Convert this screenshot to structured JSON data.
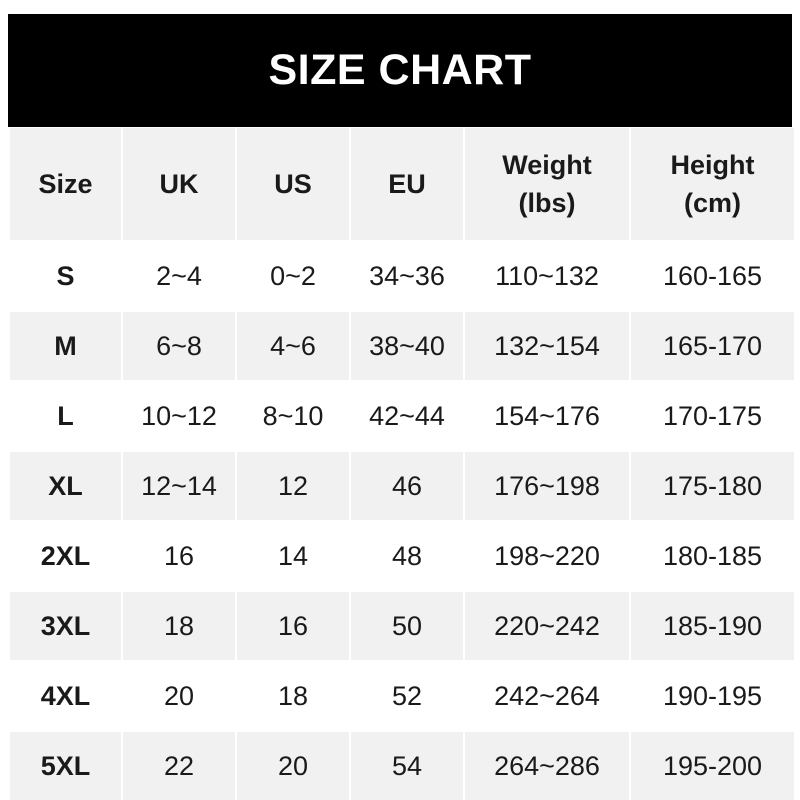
{
  "chart_data": {
    "type": "table",
    "title": "SIZE CHART",
    "columns": [
      "Size",
      "UK",
      "US",
      "EU",
      "Weight\n(lbs)",
      "Height\n(cm)"
    ],
    "rows": [
      [
        "S",
        "2~4",
        "0~2",
        "34~36",
        "110~132",
        "160-165"
      ],
      [
        "M",
        "6~8",
        "4~6",
        "38~40",
        "132~154",
        "165-170"
      ],
      [
        "L",
        "10~12",
        "8~10",
        "42~44",
        "154~176",
        "170-175"
      ],
      [
        "XL",
        "12~14",
        "12",
        "46",
        "176~198",
        "175-180"
      ],
      [
        "2XL",
        "16",
        "14",
        "48",
        "198~220",
        "180-185"
      ],
      [
        "3XL",
        "18",
        "16",
        "50",
        "220~242",
        "185-190"
      ],
      [
        "4XL",
        "20",
        "18",
        "52",
        "242~264",
        "190-195"
      ],
      [
        "5XL",
        "22",
        "20",
        "54",
        "264~286",
        "195-200"
      ]
    ]
  },
  "colors": {
    "banner": "#000000",
    "header_bg": "#f1f1f1",
    "alt_row": "#f1f1f1",
    "row": "#ffffff"
  }
}
